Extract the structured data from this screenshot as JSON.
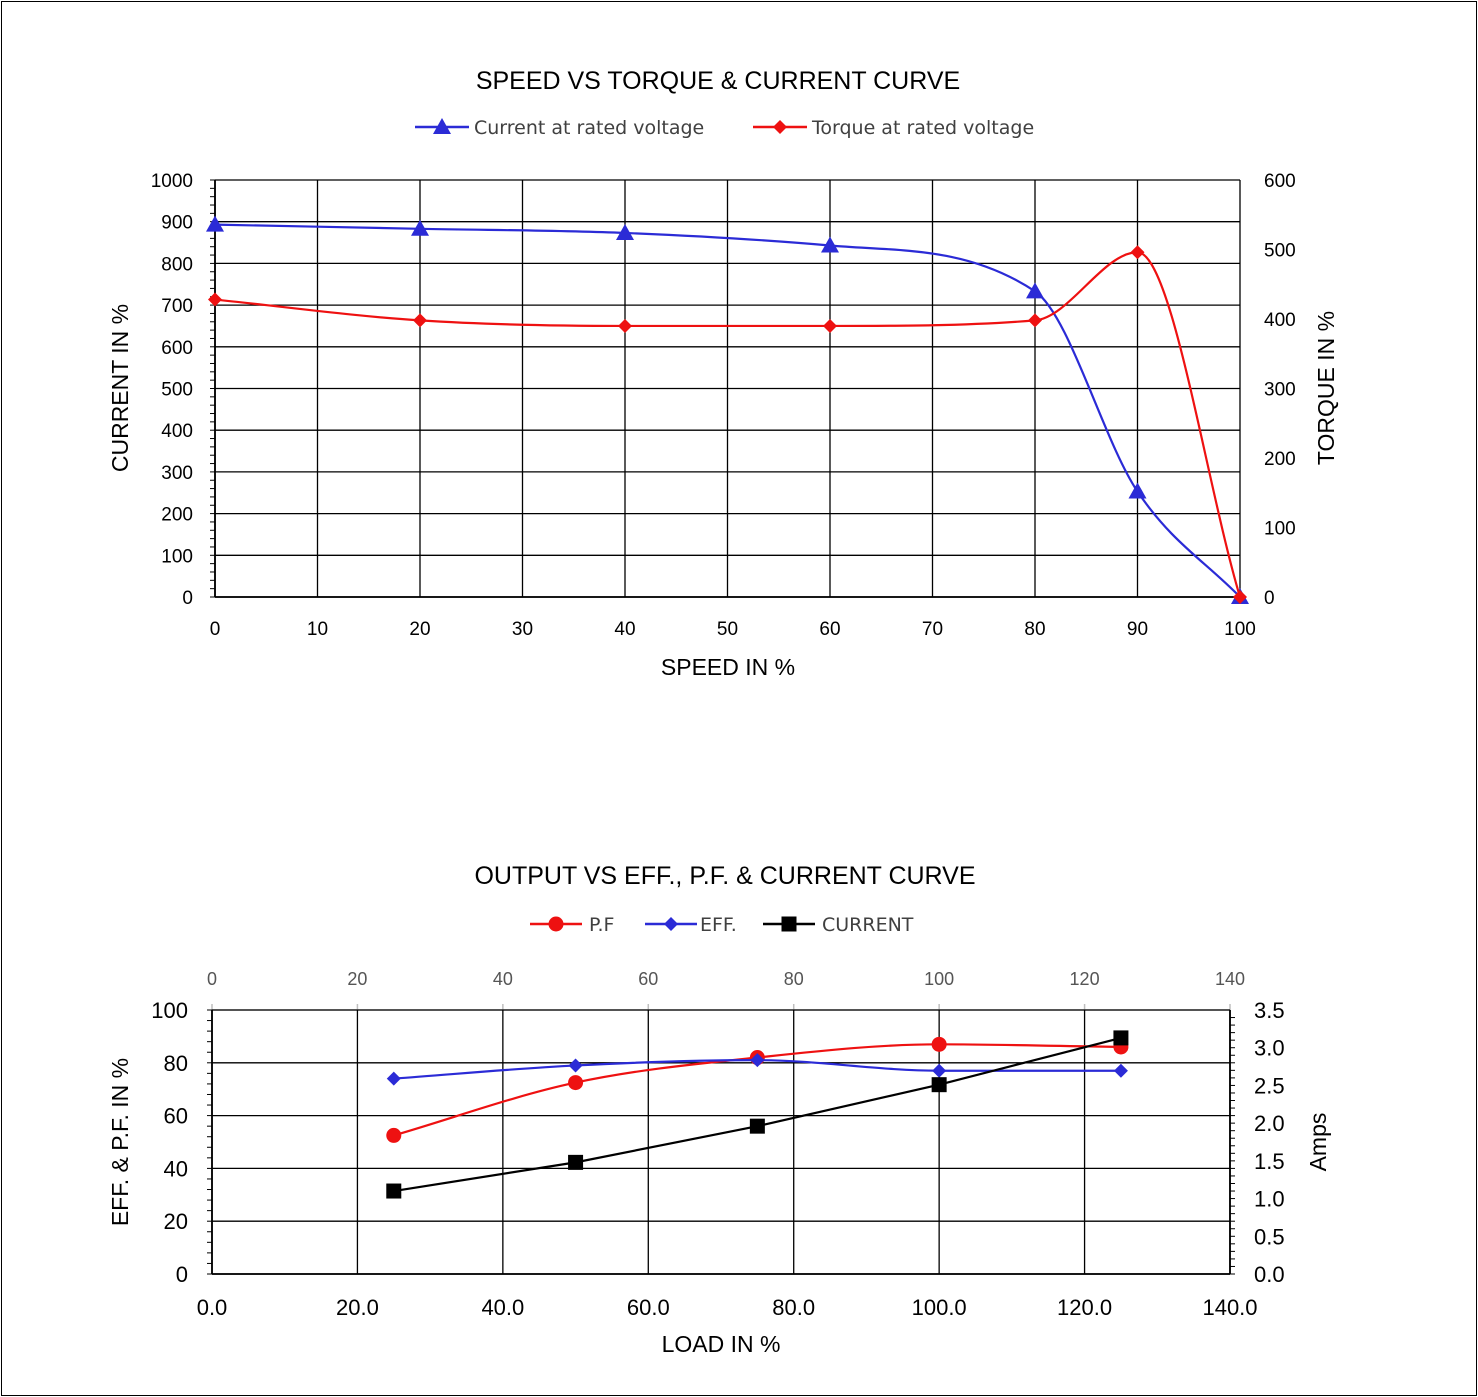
{
  "chart_data": [
    {
      "type": "line",
      "title": "SPEED VS TORQUE & CURRENT CURVE",
      "xlabel": "SPEED IN %",
      "ylabel": "CURRENT IN %",
      "y2label": "TORQUE IN %",
      "xlim": [
        0,
        100
      ],
      "xticks": [
        "0",
        "10",
        "20",
        "30",
        "40",
        "50",
        "60",
        "70",
        "80",
        "90",
        "100"
      ],
      "ylim": [
        0,
        1000
      ],
      "yticks": [
        "0",
        "100",
        "200",
        "300",
        "400",
        "500",
        "600",
        "700",
        "800",
        "900",
        "1000"
      ],
      "y2lim": [
        0,
        600
      ],
      "y2ticks": [
        "0",
        "100",
        "200",
        "300",
        "400",
        "500",
        "600"
      ],
      "grid": true,
      "legend_position": "top",
      "series": [
        {
          "name": "Current at rated voltage",
          "axis": "left",
          "color": "#2b2bd6",
          "marker": "triangle",
          "x": [
            0,
            20,
            40,
            60,
            80,
            90,
            100
          ],
          "y": [
            893,
            883,
            873,
            843,
            733,
            253,
            0
          ]
        },
        {
          "name": "Torque at rated voltage",
          "axis": "right",
          "color": "#ee1111",
          "marker": "diamond",
          "x": [
            0,
            20,
            40,
            60,
            80,
            90,
            100
          ],
          "y": [
            428,
            398,
            390,
            390,
            398,
            496,
            0
          ]
        }
      ]
    },
    {
      "type": "line",
      "title": "OUTPUT VS EFF., P.F. & CURRENT CURVE",
      "xlabel": "LOAD IN %",
      "ylabel": "EFF. & P.F. IN %",
      "y2label": "Amps",
      "xlim": [
        0,
        140
      ],
      "xticks": [
        "0.0",
        "20.0",
        "40.0",
        "60.0",
        "80.0",
        "100.0",
        "120.0",
        "140.0"
      ],
      "x2ticks": [
        "0",
        "20",
        "40",
        "60",
        "80",
        "100",
        "120",
        "140"
      ],
      "ylim": [
        0,
        100
      ],
      "yticks": [
        "0",
        "20",
        "40",
        "60",
        "80",
        "100"
      ],
      "y2lim": [
        0,
        3.5
      ],
      "y2ticks": [
        "0.0",
        "0.5",
        "1.0",
        "1.5",
        "2.0",
        "2.5",
        "3.0",
        "3.5"
      ],
      "grid": true,
      "legend_position": "top",
      "series": [
        {
          "name": "P.F",
          "axis": "left",
          "color": "#ee1111",
          "marker": "circle",
          "x": [
            25,
            50,
            75,
            100,
            125
          ],
          "y": [
            52.5,
            72.5,
            82,
            87,
            86
          ]
        },
        {
          "name": "EFF.",
          "axis": "left",
          "color": "#2b2bd6",
          "marker": "diamond",
          "x": [
            25,
            50,
            75,
            100,
            125
          ],
          "y": [
            74,
            79,
            81,
            77,
            77
          ]
        },
        {
          "name": "CURRENT",
          "axis": "right",
          "color": "#000000",
          "marker": "square",
          "x": [
            25,
            50,
            75,
            100,
            125
          ],
          "y": [
            1.1,
            1.48,
            1.96,
            2.51,
            3.13
          ]
        }
      ]
    }
  ]
}
